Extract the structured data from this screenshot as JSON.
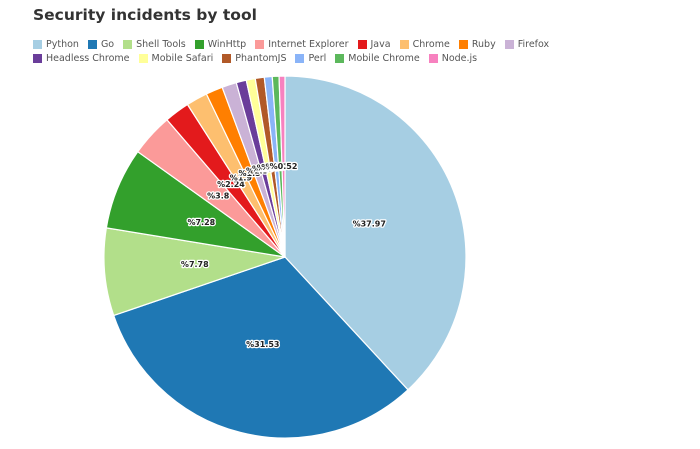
{
  "chart_data": {
    "type": "pie",
    "title": "Security incidents by tool",
    "legend_position": "top-left",
    "label_format": "%{value}",
    "slices": [
      {
        "name": "Python",
        "value": 37.97,
        "color": "#a6cee3",
        "label": "%37.97"
      },
      {
        "name": "Go",
        "value": 31.53,
        "color": "#1f78b4",
        "label": "%31.53"
      },
      {
        "name": "Shell Tools",
        "value": 7.78,
        "color": "#b2df8a",
        "label": "%7.78"
      },
      {
        "name": "WinHttp",
        "value": 7.28,
        "color": "#33a02c",
        "label": "%7.28"
      },
      {
        "name": "Internet Explorer",
        "value": 3.8,
        "color": "#fb9a99",
        "label": "%3.8"
      },
      {
        "name": "Java",
        "value": 2.24,
        "color": "#e31a1c",
        "label": "%2.24"
      },
      {
        "name": "Chrome",
        "value": 1.9,
        "color": "#fdbf6f",
        "label": "%1.9"
      },
      {
        "name": "Ruby",
        "value": 1.5,
        "color": "#ff7f00",
        "label": "%1.5"
      },
      {
        "name": "Firefox",
        "value": 1.3,
        "color": "#cab2d6",
        "label": "%1.3"
      },
      {
        "name": "Headless Chrome",
        "value": 0.9,
        "color": "#6a3d9a",
        "label": "%0.9"
      },
      {
        "name": "Mobile Safari",
        "value": 0.8,
        "color": "#ffff99",
        "label": "%0.8"
      },
      {
        "name": "PhantomJS",
        "value": 0.8,
        "color": "#b15928",
        "label": "%0.8"
      },
      {
        "name": "Perl",
        "value": 0.7,
        "color": "#8ab4f8",
        "label": "%0.7"
      },
      {
        "name": "Mobile Chrome",
        "value": 0.6,
        "color": "#5cb85c",
        "label": "%0.6"
      },
      {
        "name": "Node.js",
        "value": 0.52,
        "color": "#f781bf",
        "label": "%0.52"
      }
    ]
  }
}
